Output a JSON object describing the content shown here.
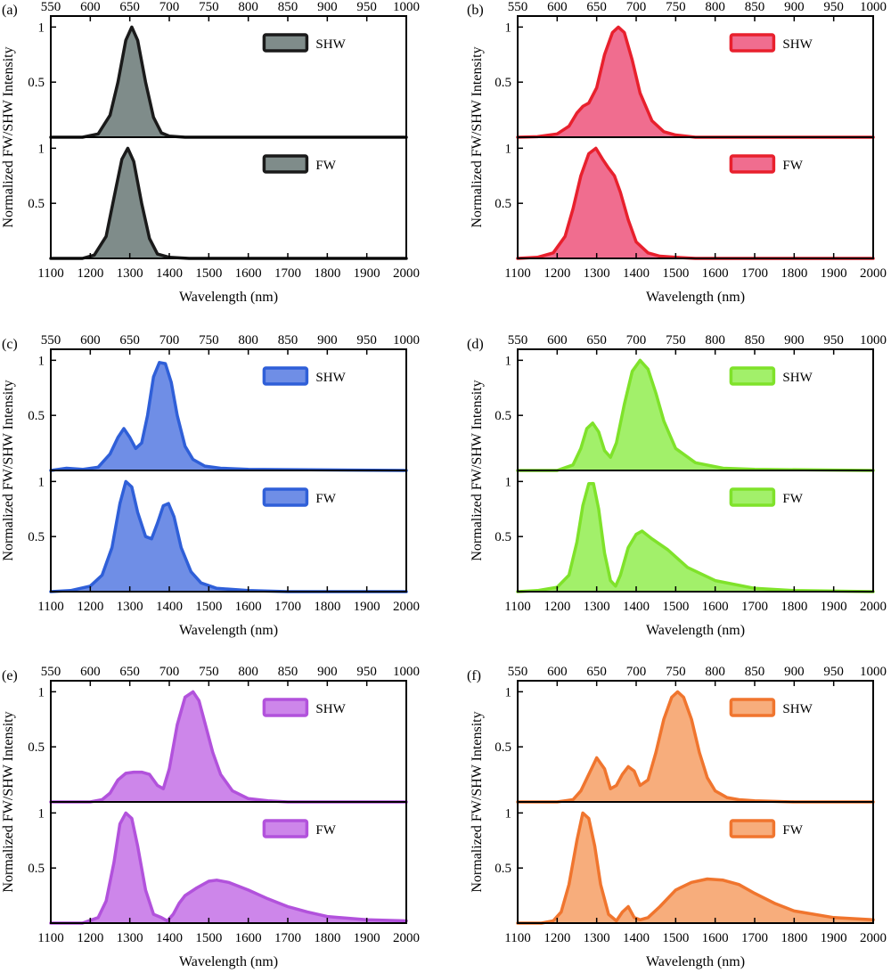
{
  "chart_data": [
    {
      "panel": "(a)",
      "type": "area",
      "color": "#7f8c8a",
      "stroke": "#1a1a1a",
      "xlabel": "Wavelength (nm)",
      "ylabel": "Normalized FW/SHW Intensity",
      "top_axis_ticks": [
        "550",
        "600",
        "650",
        "700",
        "750",
        "800",
        "850",
        "900",
        "950",
        "1000"
      ],
      "bottom_axis_ticks": [
        "1100",
        "1200",
        "1300",
        "1400",
        "1500",
        "1600",
        "1700",
        "1800",
        "1900",
        "2000"
      ],
      "xlim": [
        1100,
        2000
      ],
      "ylim": [
        0,
        1.1
      ],
      "y_ticks": [
        "1",
        "0.5"
      ],
      "series": [
        {
          "name": "SHW",
          "x": [
            1100,
            1180,
            1220,
            1250,
            1270,
            1290,
            1305,
            1320,
            1340,
            1360,
            1380,
            1400,
            1440,
            2000
          ],
          "values": [
            0,
            0,
            0.03,
            0.2,
            0.5,
            0.88,
            1.0,
            0.88,
            0.5,
            0.18,
            0.04,
            0.01,
            0,
            0
          ]
        },
        {
          "name": "FW",
          "x": [
            1100,
            1180,
            1210,
            1240,
            1260,
            1280,
            1295,
            1310,
            1330,
            1350,
            1370,
            1400,
            1450,
            2000
          ],
          "values": [
            0,
            0,
            0.03,
            0.2,
            0.55,
            0.9,
            1.0,
            0.88,
            0.5,
            0.18,
            0.04,
            0.01,
            0,
            0
          ]
        }
      ]
    },
    {
      "panel": "(b)",
      "type": "area",
      "color": "#f06d8f",
      "stroke": "#e8202d",
      "xlabel": "Wavelength (nm)",
      "ylabel": "Normalized FW/SHW Intensity",
      "top_axis_ticks": [
        "550",
        "600",
        "650",
        "700",
        "750",
        "800",
        "850",
        "900",
        "950",
        "1000"
      ],
      "bottom_axis_ticks": [
        "1100",
        "1200",
        "1300",
        "1400",
        "1500",
        "1600",
        "1700",
        "1800",
        "1900",
        "2000"
      ],
      "xlim": [
        1100,
        2000
      ],
      "ylim": [
        0,
        1.1
      ],
      "y_ticks": [
        "1",
        "0.5"
      ],
      "series": [
        {
          "name": "SHW",
          "x": [
            1100,
            1150,
            1200,
            1230,
            1250,
            1265,
            1280,
            1300,
            1320,
            1340,
            1355,
            1370,
            1390,
            1410,
            1440,
            1470,
            1500,
            1550,
            2000
          ],
          "values": [
            0,
            0.005,
            0.03,
            0.1,
            0.22,
            0.28,
            0.31,
            0.45,
            0.75,
            0.95,
            1.0,
            0.95,
            0.7,
            0.4,
            0.15,
            0.05,
            0.02,
            0,
            0
          ]
        },
        {
          "name": "FW",
          "x": [
            1100,
            1150,
            1190,
            1220,
            1240,
            1260,
            1280,
            1298,
            1315,
            1330,
            1345,
            1360,
            1380,
            1400,
            1430,
            1460,
            1500,
            1550,
            2000
          ],
          "values": [
            0,
            0.01,
            0.05,
            0.2,
            0.45,
            0.75,
            0.95,
            1.0,
            0.9,
            0.82,
            0.75,
            0.6,
            0.35,
            0.15,
            0.05,
            0.02,
            0.01,
            0,
            0
          ]
        }
      ]
    },
    {
      "panel": "(c)",
      "type": "area",
      "color": "#6f8ee6",
      "stroke": "#2f5fd8",
      "xlabel": "Wavelength (nm)",
      "ylabel": "Normalized FW/SHW Intensity",
      "top_axis_ticks": [
        "550",
        "600",
        "650",
        "700",
        "750",
        "800",
        "850",
        "900",
        "950",
        "1000"
      ],
      "bottom_axis_ticks": [
        "1100",
        "1200",
        "1300",
        "1400",
        "1500",
        "1600",
        "1700",
        "1800",
        "1900",
        "2000"
      ],
      "xlim": [
        1100,
        2000
      ],
      "ylim": [
        0,
        1.1
      ],
      "y_ticks": [
        "1",
        "0.5"
      ],
      "series": [
        {
          "name": "SHW",
          "x": [
            1100,
            1140,
            1180,
            1220,
            1250,
            1270,
            1285,
            1300,
            1315,
            1330,
            1345,
            1360,
            1375,
            1390,
            1405,
            1420,
            1440,
            1460,
            1490,
            1530,
            1600,
            2000
          ],
          "values": [
            0,
            0.02,
            0.01,
            0.03,
            0.15,
            0.3,
            0.38,
            0.3,
            0.2,
            0.25,
            0.5,
            0.85,
            0.98,
            0.97,
            0.8,
            0.5,
            0.22,
            0.1,
            0.04,
            0.02,
            0.01,
            0
          ]
        },
        {
          "name": "FW",
          "x": [
            1100,
            1150,
            1200,
            1230,
            1255,
            1275,
            1290,
            1305,
            1320,
            1340,
            1355,
            1370,
            1385,
            1398,
            1412,
            1430,
            1455,
            1480,
            1520,
            1600,
            1700,
            2000
          ],
          "values": [
            0,
            0.01,
            0.05,
            0.15,
            0.4,
            0.8,
            1.0,
            0.95,
            0.72,
            0.5,
            0.48,
            0.62,
            0.78,
            0.8,
            0.68,
            0.4,
            0.18,
            0.08,
            0.03,
            0.01,
            0,
            0
          ]
        }
      ]
    },
    {
      "panel": "(d)",
      "type": "area",
      "color": "#a2f06a",
      "stroke": "#7fe22a",
      "xlabel": "Wavelength (nm)",
      "ylabel": "Normalized FW/SHW Intensity",
      "top_axis_ticks": [
        "550",
        "600",
        "650",
        "700",
        "750",
        "800",
        "850",
        "900",
        "950",
        "1000"
      ],
      "bottom_axis_ticks": [
        "1100",
        "1200",
        "1300",
        "1400",
        "1500",
        "1600",
        "1700",
        "1800",
        "1900",
        "2000"
      ],
      "xlim": [
        1100,
        2000
      ],
      "ylim": [
        0,
        1.1
      ],
      "y_ticks": [
        "1",
        "0.5"
      ],
      "series": [
        {
          "name": "SHW",
          "x": [
            1100,
            1200,
            1240,
            1260,
            1275,
            1290,
            1305,
            1320,
            1335,
            1350,
            1370,
            1390,
            1410,
            1430,
            1450,
            1470,
            1500,
            1550,
            1620,
            1700,
            2000
          ],
          "values": [
            0,
            0,
            0.05,
            0.2,
            0.38,
            0.43,
            0.35,
            0.18,
            0.12,
            0.25,
            0.6,
            0.9,
            1.0,
            0.92,
            0.7,
            0.45,
            0.2,
            0.07,
            0.02,
            0.01,
            0
          ]
        },
        {
          "name": "FW",
          "x": [
            1100,
            1150,
            1200,
            1230,
            1250,
            1265,
            1280,
            1292,
            1305,
            1320,
            1335,
            1348,
            1360,
            1380,
            1400,
            1415,
            1440,
            1480,
            1530,
            1600,
            1700,
            1800,
            2000
          ],
          "values": [
            0,
            0.01,
            0.04,
            0.15,
            0.45,
            0.78,
            0.98,
            0.98,
            0.75,
            0.35,
            0.1,
            0.05,
            0.15,
            0.4,
            0.52,
            0.55,
            0.48,
            0.38,
            0.22,
            0.1,
            0.03,
            0.01,
            0
          ]
        }
      ]
    },
    {
      "panel": "(e)",
      "type": "area",
      "color": "#cd86ea",
      "stroke": "#b252dc",
      "xlabel": "Wavelength (nm)",
      "ylabel": "Normalized FW/SHW Intensity",
      "top_axis_ticks": [
        "550",
        "600",
        "650",
        "700",
        "750",
        "800",
        "850",
        "900",
        "950",
        "1000"
      ],
      "bottom_axis_ticks": [
        "1100",
        "1200",
        "1300",
        "1400",
        "1500",
        "1600",
        "1700",
        "1800",
        "1900",
        "2000"
      ],
      "xlim": [
        1100,
        2000
      ],
      "ylim": [
        0,
        1.1
      ],
      "y_ticks": [
        "1",
        "0.5"
      ],
      "series": [
        {
          "name": "SHW",
          "x": [
            1100,
            1200,
            1230,
            1250,
            1270,
            1290,
            1310,
            1330,
            1350,
            1370,
            1385,
            1400,
            1420,
            1440,
            1460,
            1475,
            1490,
            1510,
            1530,
            1560,
            1600,
            1650,
            1700,
            2000
          ],
          "values": [
            0,
            0,
            0.02,
            0.08,
            0.2,
            0.26,
            0.27,
            0.27,
            0.25,
            0.15,
            0.12,
            0.3,
            0.7,
            0.95,
            1.0,
            0.92,
            0.72,
            0.45,
            0.25,
            0.1,
            0.03,
            0.01,
            0,
            0
          ]
        },
        {
          "name": "FW",
          "x": [
            1100,
            1180,
            1220,
            1240,
            1260,
            1275,
            1290,
            1305,
            1320,
            1340,
            1360,
            1380,
            1395,
            1410,
            1425,
            1440,
            1470,
            1500,
            1520,
            1550,
            1600,
            1650,
            1700,
            1750,
            1800,
            1900,
            2000
          ],
          "values": [
            0,
            0,
            0.05,
            0.2,
            0.55,
            0.9,
            1.0,
            0.95,
            0.7,
            0.3,
            0.08,
            0.05,
            0.02,
            0.08,
            0.18,
            0.25,
            0.32,
            0.38,
            0.39,
            0.37,
            0.3,
            0.22,
            0.15,
            0.1,
            0.06,
            0.03,
            0.02
          ]
        }
      ]
    },
    {
      "panel": "(f)",
      "type": "area",
      "color": "#f7ad7c",
      "stroke": "#f0752e",
      "xlabel": "Wavelength (nm)",
      "ylabel": "Normalized FW/SHW Intensity",
      "top_axis_ticks": [
        "550",
        "600",
        "650",
        "700",
        "750",
        "800",
        "850",
        "900",
        "950",
        "1000"
      ],
      "bottom_axis_ticks": [
        "1100",
        "1200",
        "1300",
        "1400",
        "1500",
        "1600",
        "1700",
        "1800",
        "1900",
        "2000"
      ],
      "xlim": [
        1100,
        2000
      ],
      "ylim": [
        0,
        1.1
      ],
      "y_ticks": [
        "1",
        "0.5"
      ],
      "series": [
        {
          "name": "SHW",
          "x": [
            1100,
            1200,
            1240,
            1260,
            1280,
            1300,
            1320,
            1335,
            1350,
            1365,
            1380,
            1395,
            1410,
            1430,
            1450,
            1470,
            1490,
            1505,
            1520,
            1540,
            1560,
            1580,
            1600,
            1630,
            1660,
            1700,
            1800,
            2000
          ],
          "values": [
            0,
            0,
            0.02,
            0.1,
            0.25,
            0.4,
            0.3,
            0.12,
            0.15,
            0.25,
            0.32,
            0.28,
            0.15,
            0.2,
            0.45,
            0.75,
            0.95,
            1.0,
            0.95,
            0.75,
            0.45,
            0.22,
            0.1,
            0.04,
            0.02,
            0.01,
            0,
            0
          ]
        },
        {
          "name": "FW",
          "x": [
            1100,
            1160,
            1190,
            1210,
            1230,
            1250,
            1265,
            1280,
            1295,
            1310,
            1330,
            1350,
            1365,
            1380,
            1395,
            1410,
            1430,
            1460,
            1500,
            1540,
            1580,
            1620,
            1660,
            1700,
            1750,
            1800,
            1900,
            2000
          ],
          "values": [
            0,
            0,
            0.02,
            0.1,
            0.35,
            0.75,
            1.0,
            0.95,
            0.7,
            0.35,
            0.08,
            0.02,
            0.1,
            0.15,
            0.05,
            0.03,
            0.05,
            0.15,
            0.3,
            0.37,
            0.4,
            0.39,
            0.35,
            0.27,
            0.18,
            0.11,
            0.05,
            0.03
          ]
        }
      ]
    }
  ]
}
